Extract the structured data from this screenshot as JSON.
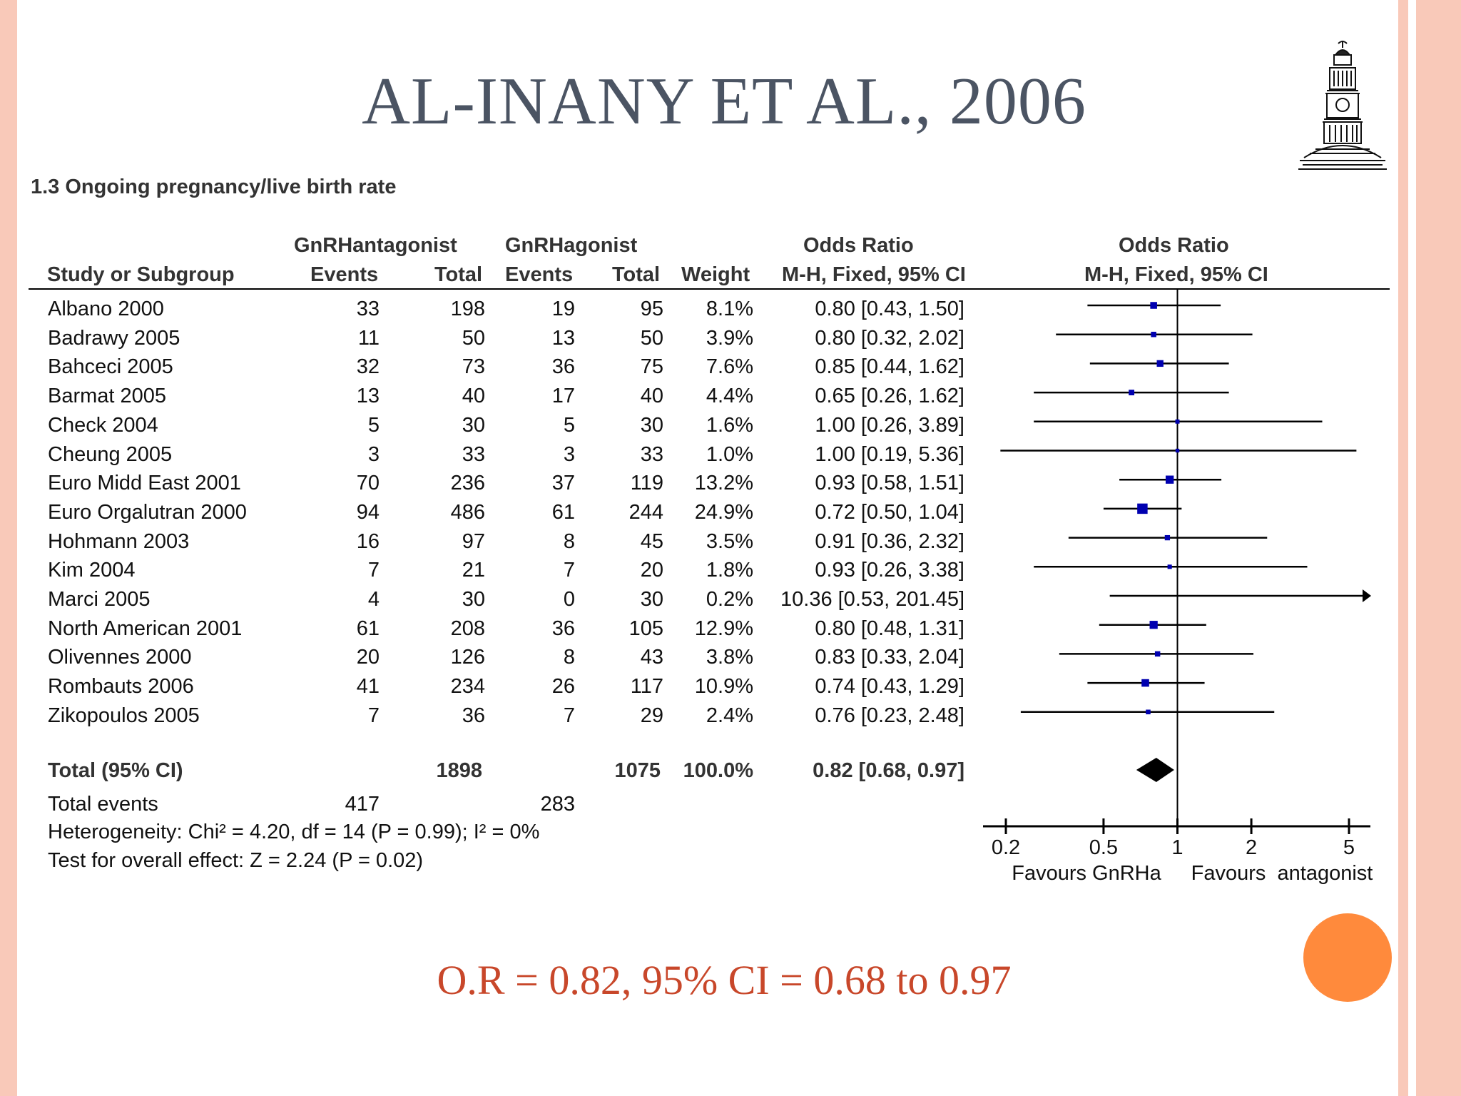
{
  "slide": {
    "title": "AL-INANY ET AL., 2006",
    "result_text": "O.R = 0.82, 95% CI = 0.68 to 0.97",
    "accent_color": "#ff8a3c",
    "border_color": "#f9c9b9",
    "logo_icon": "clock-tower-icon"
  },
  "chart_data": {
    "type": "forest",
    "title": "1.3 Ongoing pregnancy/live birth rate",
    "groups": [
      "GnRHantagonist",
      "GnRHagonist"
    ],
    "columns": {
      "study": "Study or Subgroup",
      "events": "Events",
      "total": "Total",
      "weight": "Weight",
      "or_title": "Odds Ratio",
      "or_method": "M-H, Fixed, 95% CI"
    },
    "studies": [
      {
        "name": "Albano 2000",
        "e1": 33,
        "n1": 198,
        "e2": 19,
        "n2": 95,
        "weight": "8.1%",
        "or_text": "0.80 [0.43, 1.50]",
        "or": 0.8,
        "lo": 0.43,
        "hi": 1.5,
        "w": 8.1
      },
      {
        "name": "Badrawy 2005",
        "e1": 11,
        "n1": 50,
        "e2": 13,
        "n2": 50,
        "weight": "3.9%",
        "or_text": "0.80 [0.32, 2.02]",
        "or": 0.8,
        "lo": 0.32,
        "hi": 2.02,
        "w": 3.9
      },
      {
        "name": "Bahceci 2005",
        "e1": 32,
        "n1": 73,
        "e2": 36,
        "n2": 75,
        "weight": "7.6%",
        "or_text": "0.85 [0.44, 1.62]",
        "or": 0.85,
        "lo": 0.44,
        "hi": 1.62,
        "w": 7.6
      },
      {
        "name": "Barmat 2005",
        "e1": 13,
        "n1": 40,
        "e2": 17,
        "n2": 40,
        "weight": "4.4%",
        "or_text": "0.65 [0.26, 1.62]",
        "or": 0.65,
        "lo": 0.26,
        "hi": 1.62,
        "w": 4.4
      },
      {
        "name": "Check 2004",
        "e1": 5,
        "n1": 30,
        "e2": 5,
        "n2": 30,
        "weight": "1.6%",
        "or_text": "1.00 [0.26, 3.89]",
        "or": 1.0,
        "lo": 0.26,
        "hi": 3.89,
        "w": 1.6
      },
      {
        "name": "Cheung 2005",
        "e1": 3,
        "n1": 33,
        "e2": 3,
        "n2": 33,
        "weight": "1.0%",
        "or_text": "1.00 [0.19, 5.36]",
        "or": 1.0,
        "lo": 0.19,
        "hi": 5.36,
        "w": 1.0
      },
      {
        "name": "Euro Midd East 2001",
        "e1": 70,
        "n1": 236,
        "e2": 37,
        "n2": 119,
        "weight": "13.2%",
        "or_text": "0.93 [0.58, 1.51]",
        "or": 0.93,
        "lo": 0.58,
        "hi": 1.51,
        "w": 13.2
      },
      {
        "name": "Euro Orgalutran 2000",
        "e1": 94,
        "n1": 486,
        "e2": 61,
        "n2": 244,
        "weight": "24.9%",
        "or_text": "0.72 [0.50, 1.04]",
        "or": 0.72,
        "lo": 0.5,
        "hi": 1.04,
        "w": 24.9
      },
      {
        "name": "Hohmann 2003",
        "e1": 16,
        "n1": 97,
        "e2": 8,
        "n2": 45,
        "weight": "3.5%",
        "or_text": "0.91 [0.36, 2.32]",
        "or": 0.91,
        "lo": 0.36,
        "hi": 2.32,
        "w": 3.5
      },
      {
        "name": "Kim 2004",
        "e1": 7,
        "n1": 21,
        "e2": 7,
        "n2": 20,
        "weight": "1.8%",
        "or_text": "0.93 [0.26, 3.38]",
        "or": 0.93,
        "lo": 0.26,
        "hi": 3.38,
        "w": 1.8
      },
      {
        "name": "Marci 2005",
        "e1": 4,
        "n1": 30,
        "e2": 0,
        "n2": 30,
        "weight": "0.2%",
        "or_text": "10.36 [0.53, 201.45]",
        "or": 10.36,
        "lo": 0.53,
        "hi": 201.45,
        "w": 0.2
      },
      {
        "name": "North American 2001",
        "e1": 61,
        "n1": 208,
        "e2": 36,
        "n2": 105,
        "weight": "12.9%",
        "or_text": "0.80 [0.48, 1.31]",
        "or": 0.8,
        "lo": 0.48,
        "hi": 1.31,
        "w": 12.9
      },
      {
        "name": "Olivennes 2000",
        "e1": 20,
        "n1": 126,
        "e2": 8,
        "n2": 43,
        "weight": "3.8%",
        "or_text": "0.83 [0.33, 2.04]",
        "or": 0.83,
        "lo": 0.33,
        "hi": 2.04,
        "w": 3.8
      },
      {
        "name": "Rombauts 2006",
        "e1": 41,
        "n1": 234,
        "e2": 26,
        "n2": 117,
        "weight": "10.9%",
        "or_text": "0.74 [0.43, 1.29]",
        "or": 0.74,
        "lo": 0.43,
        "hi": 1.29,
        "w": 10.9
      },
      {
        "name": "Zikopoulos 2005",
        "e1": 7,
        "n1": 36,
        "e2": 7,
        "n2": 29,
        "weight": "2.4%",
        "or_text": "0.76 [0.23, 2.48]",
        "or": 0.76,
        "lo": 0.23,
        "hi": 2.48,
        "w": 2.4
      }
    ],
    "total": {
      "label": "Total (95% CI)",
      "n1": 1898,
      "n2": 1075,
      "weight": "100.0%",
      "or_text": "0.82 [0.68, 0.97]",
      "or": 0.82,
      "lo": 0.68,
      "hi": 0.97
    },
    "total_events": {
      "label": "Total events",
      "e1": 417,
      "e2": 283
    },
    "heterogeneity": "Heterogeneity: Chi² = 4.20, df = 14 (P = 0.99); I² = 0%",
    "overall_effect": "Test for overall effect: Z = 2.24 (P = 0.02)",
    "x_scale": "log",
    "xlim": [
      0.2,
      5
    ],
    "x_ticks": [
      0.2,
      0.5,
      1,
      2,
      5
    ],
    "x_tick_labels": [
      "0.2",
      "0.5",
      "1",
      "2",
      "5"
    ],
    "favours_left": "Favours GnRHa",
    "favours_right": "Favours  antagonist",
    "marker_color": "#0000b0"
  }
}
